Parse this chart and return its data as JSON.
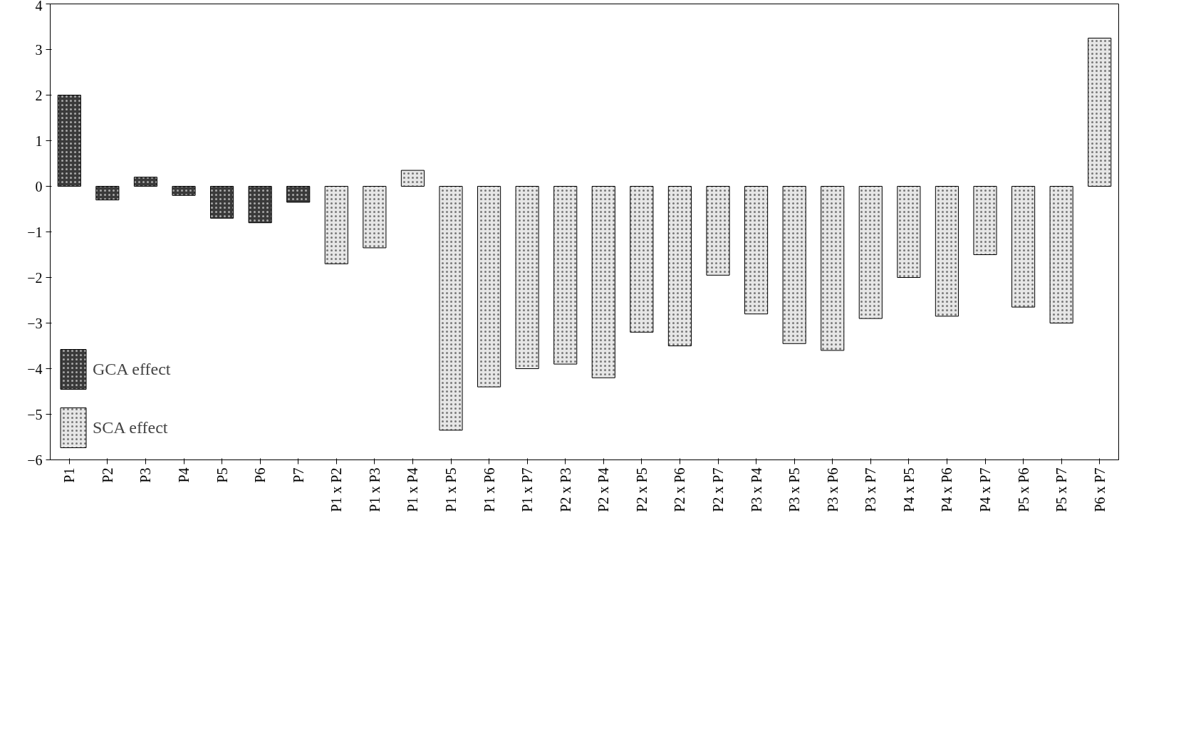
{
  "chart_data": {
    "type": "bar",
    "categories": [
      "P1",
      "P2",
      "P3",
      "P4",
      "P5",
      "P6",
      "P7",
      "P1 x P2",
      "P1 x P3",
      "P1 x P4",
      "P1 x P5",
      "P1 x P6",
      "P1 x P7",
      "P2 x P3",
      "P2 x P4",
      "P2 x P5",
      "P2 x P6",
      "P2 x P7",
      "P3 x P4",
      "P3 x P5",
      "P3 x P6",
      "P3 x P7",
      "P4 x P5",
      "P4 x P6",
      "P4 x P7",
      "P5 x P6",
      "P5 x P7",
      "P6 x P7"
    ],
    "series": [
      {
        "name": "GCA effect",
        "color": "#3a3a3a",
        "values": [
          2.0,
          -0.3,
          0.2,
          -0.2,
          -0.7,
          -0.8,
          -0.35,
          null,
          null,
          null,
          null,
          null,
          null,
          null,
          null,
          null,
          null,
          null,
          null,
          null,
          null,
          null,
          null,
          null,
          null,
          null,
          null,
          null
        ]
      },
      {
        "name": "SCA effect",
        "color": "#e6e6e6",
        "values": [
          null,
          null,
          null,
          null,
          null,
          null,
          null,
          -1.7,
          -1.35,
          0.35,
          -5.35,
          -4.4,
          -4.0,
          -3.9,
          -4.2,
          -3.2,
          -3.5,
          -1.95,
          -2.8,
          -3.45,
          -3.6,
          -2.9,
          -2.0,
          -2.85,
          -1.5,
          -2.65,
          -3.0,
          3.25
        ]
      }
    ],
    "ylim": [
      -6,
      4
    ],
    "yticks": [
      -6,
      -5,
      -4,
      -3,
      -2,
      -1,
      0,
      1,
      2,
      3,
      4
    ],
    "grid": false,
    "legend": "bottom left"
  }
}
